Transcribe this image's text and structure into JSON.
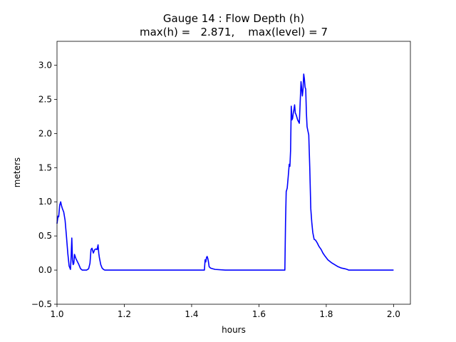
{
  "chart_data": {
    "type": "line",
    "title": "Gauge 14 : Flow Depth (h)",
    "subtitle": "max(h) =   2.871,    max(level) = 7",
    "xlabel": "hours",
    "ylabel": "meters",
    "xlim": [
      1.0,
      2.05
    ],
    "ylim": [
      -0.5,
      3.35
    ],
    "grid": false,
    "line_color": "#0000ff",
    "x_ticks": [
      1.0,
      1.2,
      1.4,
      1.6,
      1.8,
      2.0
    ],
    "x_tick_labels": [
      "1.0",
      "1.2",
      "1.4",
      "1.6",
      "1.8",
      "2.0"
    ],
    "y_ticks": [
      -0.5,
      0.0,
      0.5,
      1.0,
      1.5,
      2.0,
      2.5,
      3.0
    ],
    "y_tick_labels": [
      "−0.5",
      "0.0",
      "0.5",
      "1.0",
      "1.5",
      "2.0",
      "2.5",
      "3.0"
    ],
    "series": [
      {
        "x": [
          1.0,
          1.003,
          1.005,
          1.008,
          1.011,
          1.013,
          1.016,
          1.02,
          1.024,
          1.028,
          1.032,
          1.036,
          1.04,
          1.042,
          1.044,
          1.046,
          1.048,
          1.05,
          1.052,
          1.054,
          1.056,
          1.06,
          1.065,
          1.07,
          1.075,
          1.08,
          1.088,
          1.094,
          1.098,
          1.101,
          1.104,
          1.108,
          1.112,
          1.116,
          1.119,
          1.122,
          1.124,
          1.126,
          1.13,
          1.134,
          1.138,
          1.142,
          1.15,
          1.2,
          1.3,
          1.4,
          1.438,
          1.44,
          1.442,
          1.444,
          1.446,
          1.448,
          1.45,
          1.452,
          1.456,
          1.462,
          1.47,
          1.5,
          1.6,
          1.677,
          1.679,
          1.681,
          1.684,
          1.687,
          1.69,
          1.692,
          1.694,
          1.696,
          1.698,
          1.7,
          1.702,
          1.704,
          1.706,
          1.708,
          1.71,
          1.712,
          1.715,
          1.72,
          1.725,
          1.729,
          1.731,
          1.733,
          1.735,
          1.737,
          1.739,
          1.741,
          1.743,
          1.745,
          1.748,
          1.751,
          1.754,
          1.757,
          1.76,
          1.764,
          1.768,
          1.773,
          1.778,
          1.785,
          1.79,
          1.797,
          1.805,
          1.815,
          1.825,
          1.835,
          1.845,
          1.855,
          1.862,
          1.867,
          1.872,
          1.878,
          1.9,
          2.0
        ],
        "y": [
          0.68,
          0.79,
          0.78,
          0.95,
          1.0,
          0.95,
          0.9,
          0.85,
          0.73,
          0.5,
          0.25,
          0.06,
          0.01,
          0.2,
          0.47,
          0.15,
          0.08,
          0.1,
          0.23,
          0.2,
          0.17,
          0.13,
          0.08,
          0.02,
          0.0,
          0.0,
          0.0,
          0.02,
          0.1,
          0.3,
          0.32,
          0.25,
          0.3,
          0.31,
          0.3,
          0.37,
          0.25,
          0.18,
          0.08,
          0.03,
          0.01,
          0.0,
          0.0,
          0.0,
          0.0,
          0.0,
          0.0,
          0.15,
          0.12,
          0.18,
          0.2,
          0.17,
          0.12,
          0.05,
          0.03,
          0.02,
          0.01,
          0.0,
          0.0,
          0.0,
          0.7,
          1.15,
          1.2,
          1.37,
          1.55,
          1.52,
          1.75,
          2.4,
          2.2,
          2.22,
          2.3,
          2.35,
          2.42,
          2.3,
          2.28,
          2.25,
          2.2,
          2.15,
          2.76,
          2.55,
          2.65,
          2.871,
          2.8,
          2.68,
          2.65,
          2.3,
          2.1,
          2.05,
          1.98,
          1.5,
          0.9,
          0.7,
          0.55,
          0.45,
          0.44,
          0.4,
          0.35,
          0.3,
          0.25,
          0.2,
          0.15,
          0.11,
          0.08,
          0.05,
          0.03,
          0.02,
          0.01,
          0.0,
          0.0,
          0.0,
          0.0,
          0.0
        ]
      }
    ]
  }
}
